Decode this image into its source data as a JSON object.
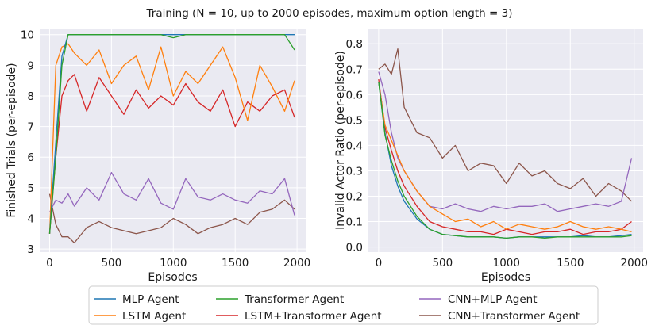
{
  "figure": {
    "suptitle": "Training (N = 10, up to 2000 episodes, maximum option length = 3)"
  },
  "chart_data": [
    {
      "type": "line",
      "title": "",
      "xlabel": "Episodes",
      "ylabel": "Finished Trials (per-episode)",
      "xlim": [
        -80,
        2070
      ],
      "ylim": [
        2.9,
        10.2
      ],
      "xticks": [
        0,
        500,
        1000,
        1500,
        2000
      ],
      "yticks": [
        3,
        4,
        5,
        6,
        7,
        8,
        9,
        10
      ],
      "grid": true,
      "x": [
        0,
        50,
        100,
        150,
        200,
        300,
        400,
        500,
        600,
        700,
        800,
        900,
        1000,
        1100,
        1200,
        1300,
        1400,
        1500,
        1600,
        1700,
        1800,
        1900,
        1980
      ],
      "series": [
        {
          "name": "MLP Agent",
          "values": [
            3.5,
            6.5,
            9.3,
            10,
            10,
            10,
            10,
            10,
            10,
            10,
            10,
            10,
            10,
            10,
            10,
            10,
            10,
            10,
            10,
            10,
            10,
            10,
            10
          ]
        },
        {
          "name": "LSTM Agent",
          "values": [
            3.5,
            9.0,
            9.6,
            9.7,
            9.4,
            9.0,
            9.5,
            8.4,
            9.0,
            9.3,
            8.2,
            9.6,
            8.0,
            8.8,
            8.4,
            9.0,
            9.6,
            8.6,
            7.2,
            9.0,
            8.3,
            7.5,
            8.5
          ]
        },
        {
          "name": "Transformer Agent",
          "values": [
            3.5,
            6.0,
            9.0,
            10,
            10,
            10,
            10,
            10,
            10,
            10,
            10,
            10,
            9.9,
            10,
            10,
            10,
            10,
            10,
            10,
            10,
            10,
            10,
            9.5
          ]
        },
        {
          "name": "LSTM+Transformer Agent",
          "values": [
            3.5,
            6.0,
            8.0,
            8.5,
            8.7,
            7.5,
            8.6,
            8.0,
            7.4,
            8.2,
            7.6,
            8.0,
            7.7,
            8.4,
            7.8,
            7.5,
            8.2,
            7.0,
            7.8,
            7.5,
            8.0,
            8.2,
            7.3
          ]
        },
        {
          "name": "CNN+MLP Agent",
          "values": [
            4.2,
            4.6,
            4.5,
            4.8,
            4.4,
            5.0,
            4.6,
            5.5,
            4.8,
            4.6,
            5.3,
            4.5,
            4.3,
            5.3,
            4.7,
            4.6,
            4.8,
            4.6,
            4.5,
            4.9,
            4.8,
            5.3,
            4.1
          ]
        },
        {
          "name": "CNN+Transformer Agent",
          "values": [
            4.8,
            3.8,
            3.4,
            3.4,
            3.2,
            3.7,
            3.9,
            3.7,
            3.6,
            3.5,
            3.6,
            3.7,
            4.0,
            3.8,
            3.5,
            3.7,
            3.8,
            4.0,
            3.8,
            4.2,
            4.3,
            4.6,
            4.3
          ]
        }
      ]
    },
    {
      "type": "line",
      "title": "",
      "xlabel": "Episodes",
      "ylabel": "Invalid Actor Ratio (per-episode)",
      "xlim": [
        -80,
        2070
      ],
      "ylim": [
        -0.02,
        0.86
      ],
      "xticks": [
        0,
        500,
        1000,
        1500,
        2000
      ],
      "yticks": [
        0.0,
        0.1,
        0.2,
        0.3,
        0.4,
        0.5,
        0.6,
        0.7,
        0.8
      ],
      "grid": true,
      "x": [
        0,
        50,
        100,
        150,
        200,
        300,
        400,
        500,
        600,
        700,
        800,
        900,
        1000,
        1100,
        1200,
        1300,
        1400,
        1500,
        1600,
        1700,
        1800,
        1900,
        1980
      ],
      "series": [
        {
          "name": "MLP Agent",
          "values": [
            0.65,
            0.45,
            0.32,
            0.24,
            0.18,
            0.11,
            0.07,
            0.05,
            0.045,
            0.04,
            0.04,
            0.04,
            0.035,
            0.04,
            0.04,
            0.04,
            0.04,
            0.04,
            0.045,
            0.04,
            0.04,
            0.045,
            0.05
          ]
        },
        {
          "name": "LSTM Agent",
          "values": [
            0.65,
            0.48,
            0.42,
            0.36,
            0.3,
            0.22,
            0.16,
            0.13,
            0.1,
            0.11,
            0.08,
            0.1,
            0.07,
            0.09,
            0.08,
            0.07,
            0.08,
            0.1,
            0.08,
            0.07,
            0.08,
            0.07,
            0.06
          ]
        },
        {
          "name": "Transformer Agent",
          "values": [
            0.65,
            0.44,
            0.34,
            0.26,
            0.2,
            0.12,
            0.07,
            0.05,
            0.045,
            0.04,
            0.04,
            0.04,
            0.035,
            0.04,
            0.04,
            0.035,
            0.04,
            0.04,
            0.04,
            0.04,
            0.04,
            0.04,
            0.045
          ]
        },
        {
          "name": "LSTM+Transformer Agent",
          "values": [
            0.66,
            0.47,
            0.38,
            0.3,
            0.24,
            0.16,
            0.1,
            0.08,
            0.07,
            0.06,
            0.06,
            0.05,
            0.07,
            0.06,
            0.05,
            0.06,
            0.06,
            0.07,
            0.05,
            0.06,
            0.06,
            0.07,
            0.1
          ]
        },
        {
          "name": "CNN+MLP Agent",
          "values": [
            0.69,
            0.6,
            0.45,
            0.35,
            0.3,
            0.22,
            0.16,
            0.15,
            0.17,
            0.15,
            0.14,
            0.16,
            0.15,
            0.16,
            0.16,
            0.17,
            0.14,
            0.15,
            0.16,
            0.17,
            0.16,
            0.18,
            0.35
          ]
        },
        {
          "name": "CNN+Transformer Agent",
          "values": [
            0.7,
            0.72,
            0.68,
            0.78,
            0.55,
            0.45,
            0.43,
            0.35,
            0.4,
            0.3,
            0.33,
            0.32,
            0.25,
            0.33,
            0.28,
            0.3,
            0.25,
            0.23,
            0.27,
            0.2,
            0.25,
            0.22,
            0.18
          ]
        }
      ]
    }
  ],
  "legend": {
    "placement": "bottom-center",
    "entries": [
      {
        "label": "MLP Agent",
        "color": "#1f77b4"
      },
      {
        "label": "Transformer Agent",
        "color": "#2ca02c"
      },
      {
        "label": "CNN+MLP Agent",
        "color": "#9467bd"
      },
      {
        "label": "LSTM Agent",
        "color": "#ff7f0e"
      },
      {
        "label": "LSTM+Transformer Agent",
        "color": "#d62728"
      },
      {
        "label": "CNN+Transformer Agent",
        "color": "#8c564b"
      }
    ]
  },
  "colors": {
    "plot_background": "#eaeaf2",
    "grid": "#ffffff"
  }
}
